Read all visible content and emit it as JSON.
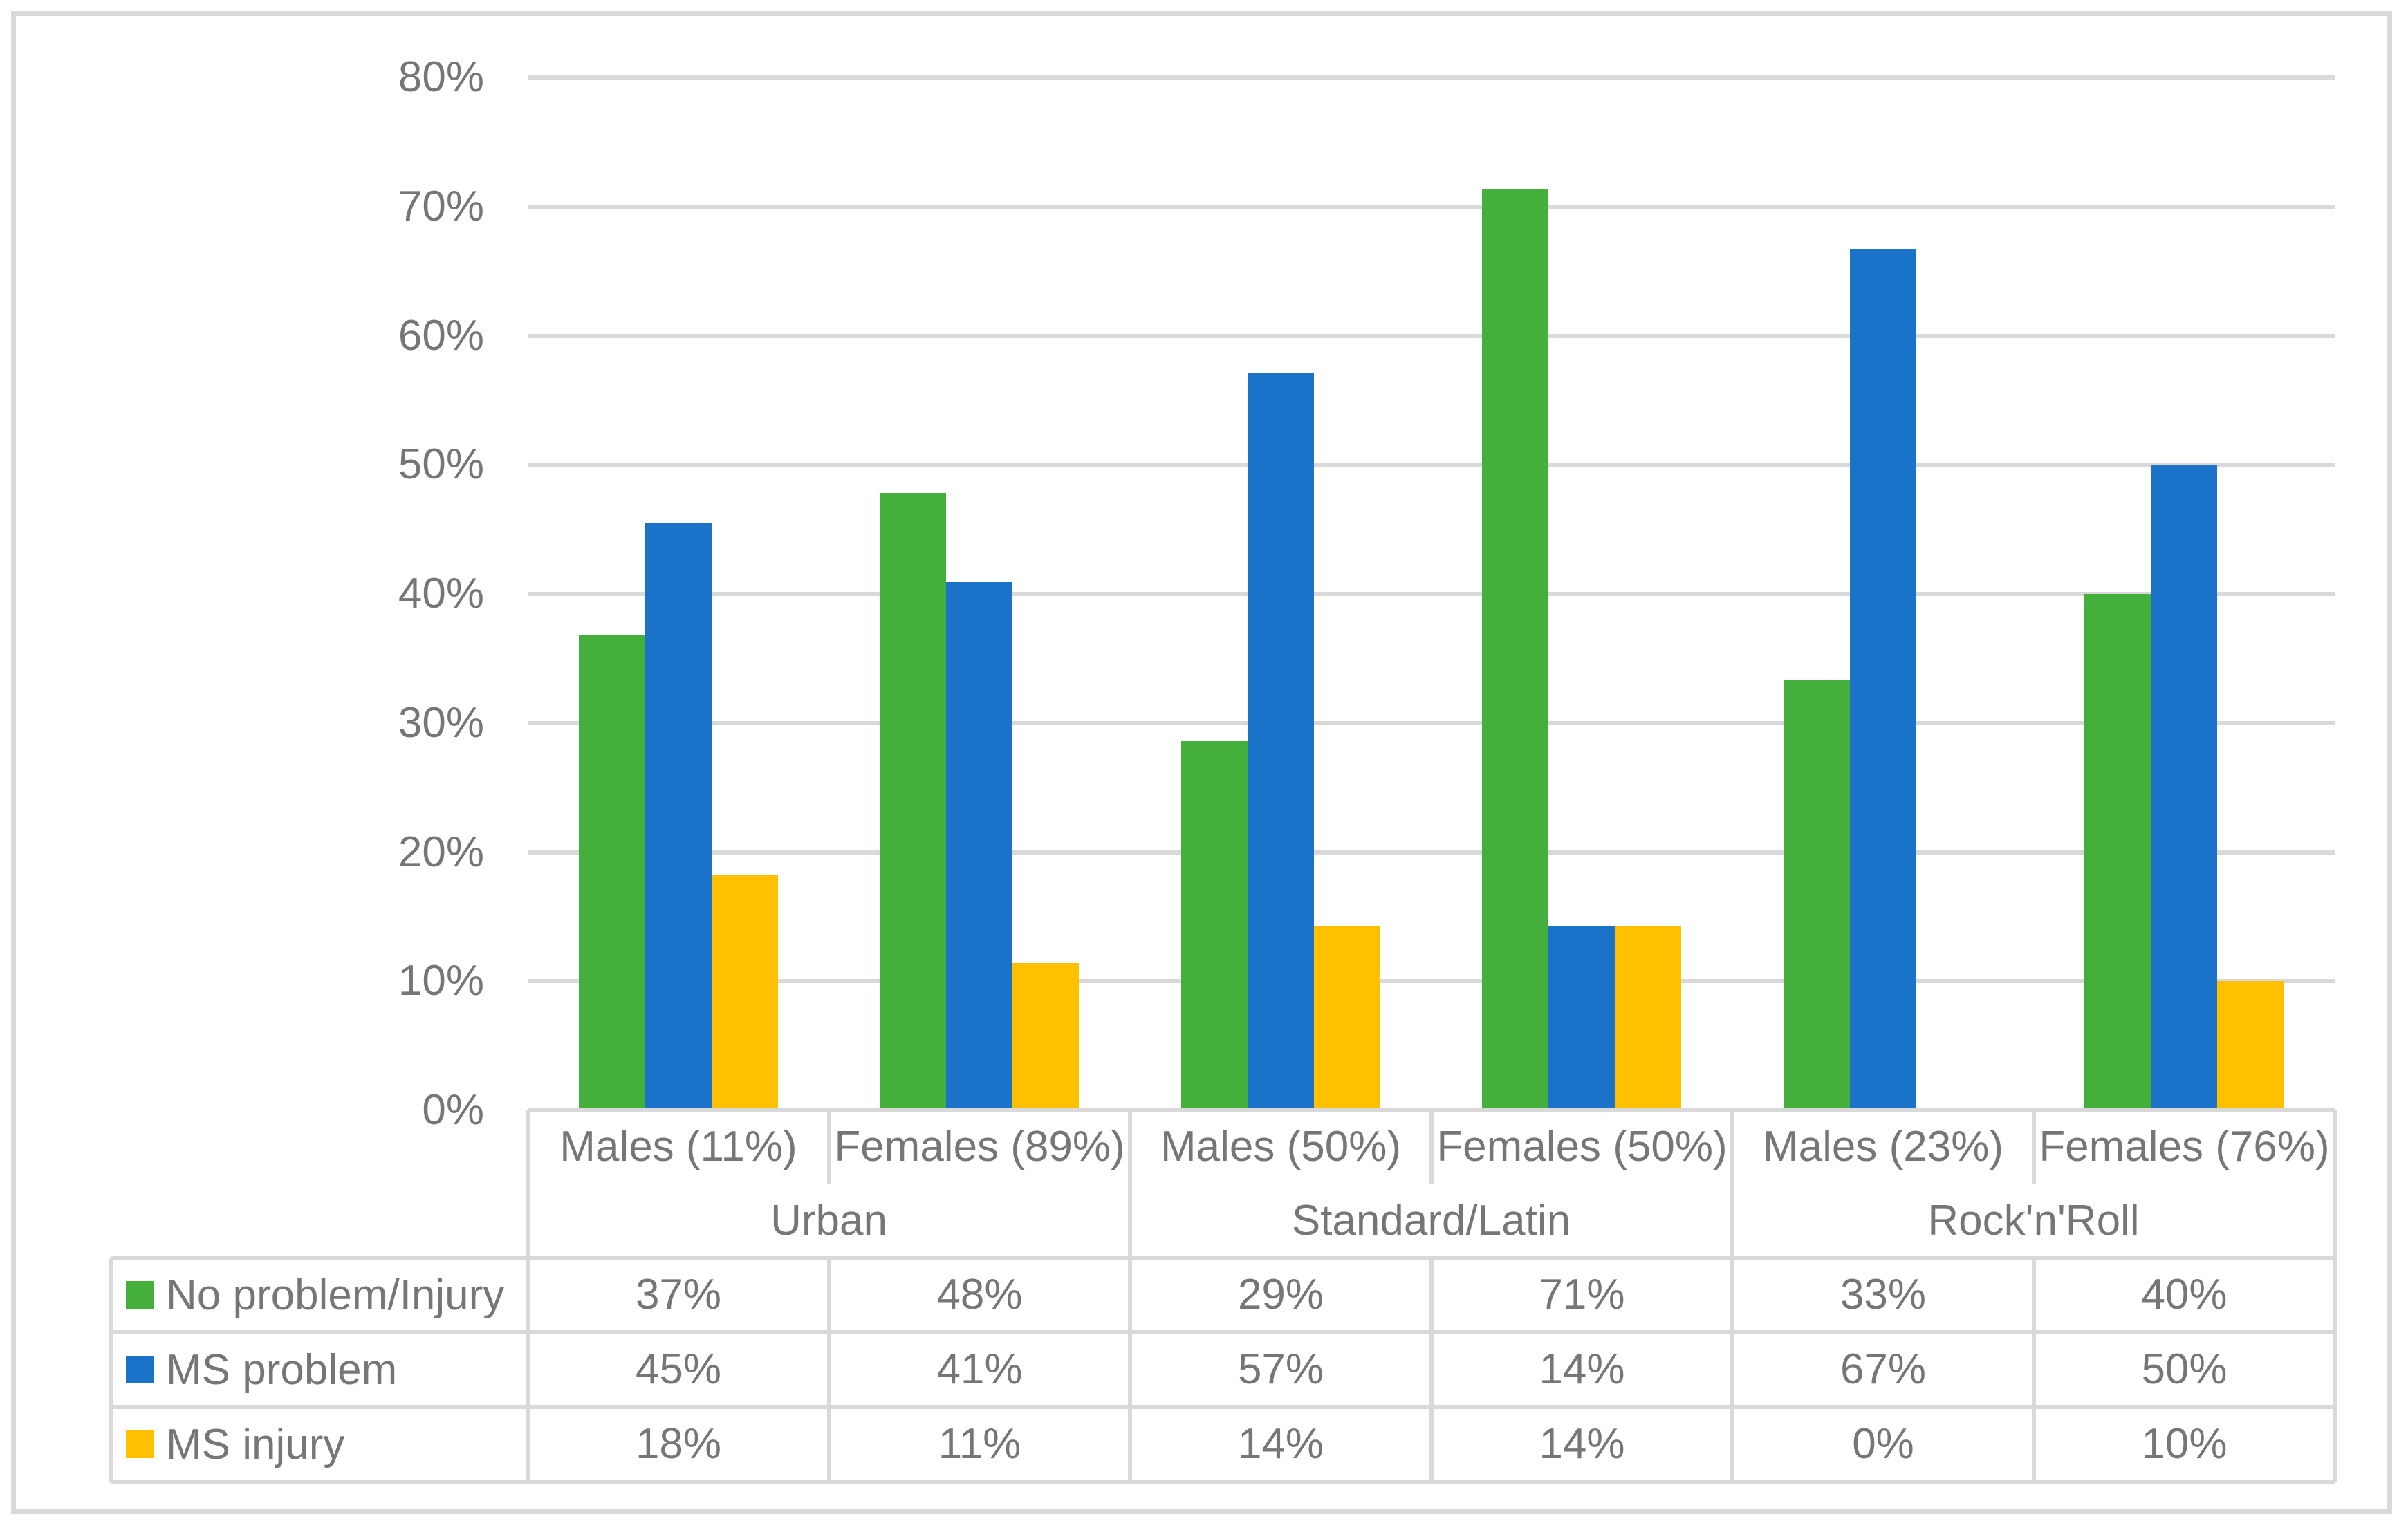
{
  "chart_data": {
    "type": "bar",
    "title": "",
    "xlabel": "",
    "ylabel": "",
    "ylim": [
      0,
      80
    ],
    "y_tick_step": 10,
    "y_ticks": [
      "0%",
      "10%",
      "20%",
      "30%",
      "40%",
      "50%",
      "60%",
      "70%",
      "80%"
    ],
    "grid": true,
    "legend_position": "data-table-left",
    "data_table_shown": true,
    "groups": [
      {
        "label": "Urban",
        "categories": [
          "Males (11%)",
          "Females (89%)"
        ]
      },
      {
        "label": "Standard/Latin",
        "categories": [
          "Males (50%)",
          "Females (50%)"
        ]
      },
      {
        "label": "Rock'n'Roll",
        "categories": [
          "Males (23%)",
          "Females (76%)"
        ]
      }
    ],
    "categories": [
      "Males (11%)",
      "Females (89%)",
      "Males (50%)",
      "Females (50%)",
      "Males (23%)",
      "Females (76%)"
    ],
    "series": [
      {
        "name": "No problem/Injury",
        "color": "#44AF3B",
        "values_display": [
          "37%",
          "48%",
          "29%",
          "71%",
          "33%",
          "40%"
        ],
        "values_pct": [
          36.8,
          47.8,
          28.6,
          71.4,
          33.3,
          40.0
        ]
      },
      {
        "name": "MS problem",
        "color": "#1A73C8",
        "values_display": [
          "45%",
          "41%",
          "57%",
          "14%",
          "67%",
          "50%"
        ],
        "values_pct": [
          45.5,
          40.9,
          57.1,
          14.3,
          66.7,
          50.0
        ]
      },
      {
        "name": "MS injury",
        "color": "#FFC000",
        "values_display": [
          "18%",
          "11%",
          "14%",
          "14%",
          "0%",
          "10%"
        ],
        "values_pct": [
          18.2,
          11.4,
          14.3,
          14.3,
          0,
          10.0
        ]
      }
    ],
    "colors": {
      "grid": "#D9D9D9",
      "border": "#D9D9D9",
      "text": "#767676",
      "background": "#FFFFFF"
    }
  }
}
